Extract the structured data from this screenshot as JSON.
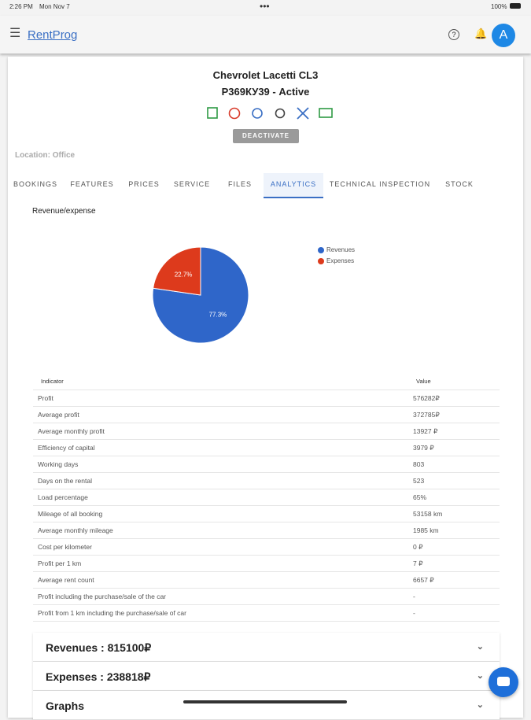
{
  "status_bar": {
    "time": "2:26 PM",
    "date": "Mon Nov 7",
    "battery": "100%"
  },
  "app_bar": {
    "title": "RentProg",
    "avatar": "A"
  },
  "car": {
    "name": "Chevrolet Lacetti CL3",
    "plate_status": "Р369КУ39 - Active",
    "button": "DEACTIVATE",
    "location": "Location: Office"
  },
  "tabs": [
    "BOOKINGS",
    "FEATURES",
    "PRICES",
    "SERVICE",
    "FILES",
    "ANALYTICS",
    "TECHNICAL INSPECTION",
    "STOCK"
  ],
  "chart_data": {
    "type": "pie",
    "title": "Revenue/expense",
    "categories": [
      "Revenues",
      "Expenses"
    ],
    "values": [
      77.3,
      22.7
    ],
    "value_labels": [
      "77.3%",
      "22.7%"
    ],
    "colors": [
      "#2f66c9",
      "#dd3a1c"
    ]
  },
  "table": {
    "header": [
      "Indicator",
      "Value"
    ],
    "rows": [
      [
        "Profit",
        "576282₽"
      ],
      [
        "Average profit",
        "372785₽"
      ],
      [
        "Average monthly profit",
        "13927 ₽"
      ],
      [
        "Efficiency of capital",
        "3979 ₽"
      ],
      [
        "Working days",
        "803"
      ],
      [
        "Days on the rental",
        "523"
      ],
      [
        "Load percentage",
        "65%"
      ],
      [
        "Mileage of all booking",
        "53158 km"
      ],
      [
        "Average monthly mileage",
        "1985 km"
      ],
      [
        "Cost per kilometer",
        "0 ₽"
      ],
      [
        "Profit per 1 km",
        "7 ₽"
      ],
      [
        "Average rent count",
        "6657 ₽"
      ],
      [
        "Profit including the purchase/sale of the car",
        "-"
      ],
      [
        "Profit from 1 km including the purchase/sale of car",
        "-"
      ]
    ]
  },
  "panels": [
    "Revenues : 815100₽",
    "Expenses : 238818₽",
    "Graphs"
  ]
}
